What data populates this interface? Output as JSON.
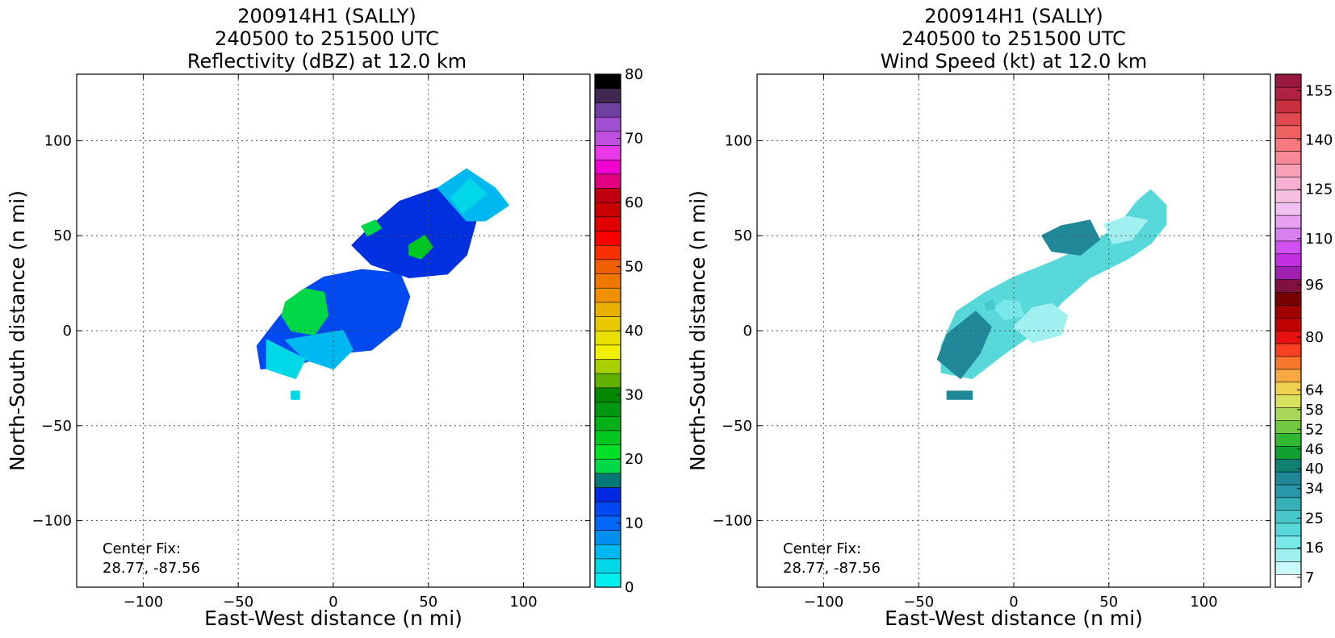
{
  "chart_data": [
    {
      "type": "heatmap",
      "title": [
        "200914H1 (SALLY)",
        "240500 to 251500 UTC",
        "Reflectivity (dBZ) at 12.0 km"
      ],
      "xlabel": "East-West distance (n mi)",
      "ylabel": "North-South distance (n mi)",
      "xlim": [
        -135,
        135
      ],
      "ylim": [
        -135,
        135
      ],
      "xticks": [
        -100,
        -50,
        0,
        50,
        100
      ],
      "yticks": [
        -100,
        -50,
        0,
        50,
        100
      ],
      "tick_labels": [
        "−100",
        "−50",
        "0",
        "50",
        "100"
      ],
      "grid": true,
      "annotation": [
        "Center Fix:",
        "28.77, -87.56"
      ],
      "colorbar": {
        "min": 0,
        "max": 80,
        "step": 2.5,
        "ticks": [
          0,
          10,
          20,
          30,
          40,
          50,
          60,
          70,
          80
        ],
        "colors": [
          "#00f0f0",
          "#00d8e8",
          "#00b8f0",
          "#0090f0",
          "#0068f8",
          "#0048f0",
          "#0028e0",
          "#007878",
          "#00d848",
          "#00e028",
          "#00c820",
          "#00b018",
          "#009810",
          "#008800",
          "#60b000",
          "#a8d000",
          "#f0f000",
          "#e8e000",
          "#e8c800",
          "#e8b000",
          "#f09000",
          "#f07800",
          "#f06000",
          "#f83000",
          "#f80000",
          "#e00000",
          "#c80000",
          "#c00010",
          "#e00080",
          "#f000d0",
          "#e838e8",
          "#c050e0",
          "#a050d0",
          "#7040a0",
          "#402850",
          "#000000"
        ]
      },
      "blobs": [
        {
          "points": [
            [
              -40,
              -8
            ],
            [
              -30,
              5
            ],
            [
              -18,
              20
            ],
            [
              -5,
              28
            ],
            [
              15,
              32
            ],
            [
              35,
              30
            ],
            [
              40,
              18
            ],
            [
              35,
              2
            ],
            [
              20,
              -10
            ],
            [
              0,
              -12
            ],
            [
              -20,
              -18
            ],
            [
              -38,
              -20
            ]
          ],
          "color": "#0048f0"
        },
        {
          "points": [
            [
              10,
              45
            ],
            [
              20,
              55
            ],
            [
              35,
              68
            ],
            [
              55,
              75
            ],
            [
              70,
              70
            ],
            [
              75,
              58
            ],
            [
              70,
              40
            ],
            [
              60,
              30
            ],
            [
              40,
              28
            ],
            [
              20,
              35
            ]
          ],
          "color": "#0030e0"
        },
        {
          "points": [
            [
              55,
              75
            ],
            [
              70,
              85
            ],
            [
              85,
              75
            ],
            [
              92,
              66
            ],
            [
              80,
              58
            ],
            [
              70,
              58
            ]
          ],
          "color": "#00b8f0"
        },
        {
          "points": [
            [
              -25,
              -5
            ],
            [
              -15,
              -15
            ],
            [
              0,
              -20
            ],
            [
              10,
              -10
            ],
            [
              5,
              0
            ]
          ],
          "color": "#00b8f0"
        },
        {
          "points": [
            [
              -35,
              -5
            ],
            [
              -25,
              -10
            ],
            [
              -15,
              -15
            ],
            [
              -20,
              -25
            ],
            [
              -35,
              -20
            ]
          ],
          "color": "#00d8e8"
        },
        {
          "points": [
            [
              -25,
              15
            ],
            [
              -15,
              22
            ],
            [
              -5,
              20
            ],
            [
              -3,
              8
            ],
            [
              -10,
              -2
            ],
            [
              -22,
              0
            ],
            [
              -27,
              8
            ]
          ],
          "color": "#00d848"
        },
        {
          "points": [
            [
              40,
              45
            ],
            [
              48,
              50
            ],
            [
              52,
              44
            ],
            [
              46,
              38
            ],
            [
              40,
              40
            ]
          ],
          "color": "#00c820"
        },
        {
          "points": [
            [
              15,
              55
            ],
            [
              22,
              58
            ],
            [
              25,
              54
            ],
            [
              18,
              50
            ]
          ],
          "color": "#00d848"
        },
        {
          "points": [
            [
              -22,
              -32
            ],
            [
              -18,
              -32
            ],
            [
              -18,
              -36
            ],
            [
              -22,
              -36
            ]
          ],
          "color": "#00d8e8"
        },
        {
          "points": [
            [
              62,
              70
            ],
            [
              72,
              80
            ],
            [
              80,
              72
            ],
            [
              68,
              62
            ]
          ],
          "color": "#00d8e8"
        }
      ]
    },
    {
      "type": "heatmap",
      "title": [
        "200914H1 (SALLY)",
        "240500 to 251500 UTC",
        "Wind Speed (kt) at 12.0 km"
      ],
      "xlabel": "East-West distance (n mi)",
      "ylabel": "North-South distance (n mi)",
      "xlim": [
        -135,
        135
      ],
      "ylim": [
        -135,
        135
      ],
      "xticks": [
        -100,
        -50,
        0,
        50,
        100
      ],
      "yticks": [
        -100,
        -50,
        0,
        50,
        100
      ],
      "tick_labels": [
        "−100",
        "−50",
        "0",
        "50",
        "100"
      ],
      "grid": true,
      "annotation": [
        "Center Fix:",
        "28.77, -87.56"
      ],
      "colorbar": {
        "min": 4,
        "max": 160,
        "step": 4.33,
        "ticks": [
          7,
          16,
          25,
          34,
          40,
          46,
          52,
          58,
          64,
          80,
          96,
          110,
          125,
          140,
          155
        ],
        "colors": [
          "#ffffff",
          "#c8f8f8",
          "#a0f0f0",
          "#78e8e8",
          "#58d8d8",
          "#48c8c8",
          "#38b0b8",
          "#2898a8",
          "#208898",
          "#108070",
          "#10a030",
          "#30b830",
          "#70c840",
          "#a8d858",
          "#d8e060",
          "#f0d050",
          "#f8a840",
          "#f87830",
          "#f84020",
          "#e81010",
          "#c00000",
          "#a00000",
          "#780000",
          "#801040",
          "#a020b0",
          "#c030e0",
          "#d050f0",
          "#d880f0",
          "#e8a0f0",
          "#f0c0f0",
          "#f8c0e0",
          "#f8b0d0",
          "#f8a0b8",
          "#f88898",
          "#f87880",
          "#f06060",
          "#e04850",
          "#c83040",
          "#b02040",
          "#981840"
        ]
      },
      "blobs": [
        {
          "points": [
            [
              -38,
              -8
            ],
            [
              -30,
              10
            ],
            [
              -15,
              20
            ],
            [
              0,
              28
            ],
            [
              20,
              36
            ],
            [
              40,
              45
            ],
            [
              55,
              55
            ],
            [
              65,
              68
            ],
            [
              72,
              74
            ],
            [
              80,
              66
            ],
            [
              80,
              56
            ],
            [
              72,
              46
            ],
            [
              60,
              38
            ],
            [
              40,
              28
            ],
            [
              25,
              15
            ],
            [
              15,
              2
            ],
            [
              -5,
              -12
            ],
            [
              -22,
              -25
            ],
            [
              -38,
              -22
            ]
          ],
          "color": "#58d8d8"
        },
        {
          "points": [
            [
              -40,
              -15
            ],
            [
              -35,
              -2
            ],
            [
              -20,
              10
            ],
            [
              -12,
              2
            ],
            [
              -18,
              -12
            ],
            [
              -28,
              -25
            ]
          ],
          "color": "#208898"
        },
        {
          "points": [
            [
              15,
              50
            ],
            [
              25,
              55
            ],
            [
              40,
              58
            ],
            [
              45,
              48
            ],
            [
              35,
              40
            ],
            [
              20,
              42
            ]
          ],
          "color": "#208898"
        },
        {
          "points": [
            [
              0,
              2
            ],
            [
              10,
              12
            ],
            [
              20,
              14
            ],
            [
              28,
              8
            ],
            [
              25,
              -2
            ],
            [
              10,
              -6
            ]
          ],
          "color": "#a0f0f0"
        },
        {
          "points": [
            [
              48,
              56
            ],
            [
              60,
              60
            ],
            [
              70,
              58
            ],
            [
              62,
              48
            ],
            [
              52,
              46
            ]
          ],
          "color": "#a0f0f0"
        },
        {
          "points": [
            [
              -10,
              12
            ],
            [
              -5,
              16
            ],
            [
              3,
              15
            ],
            [
              5,
              8
            ],
            [
              -5,
              6
            ]
          ],
          "color": "#78e8e8"
        },
        {
          "points": [
            [
              -35,
              -32
            ],
            [
              -22,
              -32
            ],
            [
              -22,
              -36
            ],
            [
              -35,
              -36
            ]
          ],
          "color": "#208898"
        },
        {
          "points": [
            [
              -15,
              14
            ],
            [
              -11,
              16
            ],
            [
              -10,
              12
            ],
            [
              -14,
              11
            ]
          ],
          "color": "#48c8c8"
        }
      ]
    }
  ]
}
